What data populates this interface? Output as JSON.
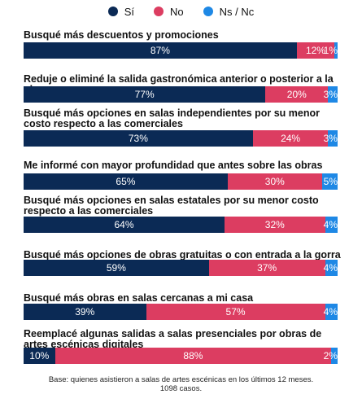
{
  "legend": [
    {
      "label": "Sí",
      "color": "#0b2a55"
    },
    {
      "label": "No",
      "color": "#dc3d61"
    },
    {
      "label": "Ns / Nc",
      "color": "#1e88e5"
    }
  ],
  "chart_data": {
    "type": "bar",
    "orientation": "horizontal",
    "stacked": true,
    "legend_position": "top-center",
    "categories": [
      "Busqué más descuentos y promociones",
      "Reduje o eliminé la salida gastronómica anterior o posterior a la obra",
      "Busqué más opciones en salas independientes por su menor costo respecto a las comerciales",
      "Me informé con mayor profundidad que antes sobre las obras",
      "Busqué más opciones en salas estatales por su menor costo respecto a las comerciales",
      "Busqué más opciones de obras gratuitas o con entrada a la gorra",
      "Busqué más obras en salas cercanas a mi casa",
      "Reemplacé algunas salidas a salas presenciales por obras de artes escénicas digitales"
    ],
    "series": [
      {
        "name": "Sí",
        "color": "#0b2a55",
        "values": [
          87,
          77,
          73,
          65,
          64,
          59,
          39,
          10
        ]
      },
      {
        "name": "No",
        "color": "#dc3d61",
        "values": [
          12,
          20,
          24,
          30,
          32,
          37,
          57,
          88
        ]
      },
      {
        "name": "Ns / Nc",
        "color": "#1e88e5",
        "values": [
          1,
          3,
          3,
          5,
          4,
          4,
          4,
          2
        ]
      }
    ],
    "value_suffix": "%"
  },
  "footnote": {
    "line1": "Base: quienes asistieron a salas de artes escénicas en los últimos 12 meses.",
    "line2": "1098 casos."
  }
}
